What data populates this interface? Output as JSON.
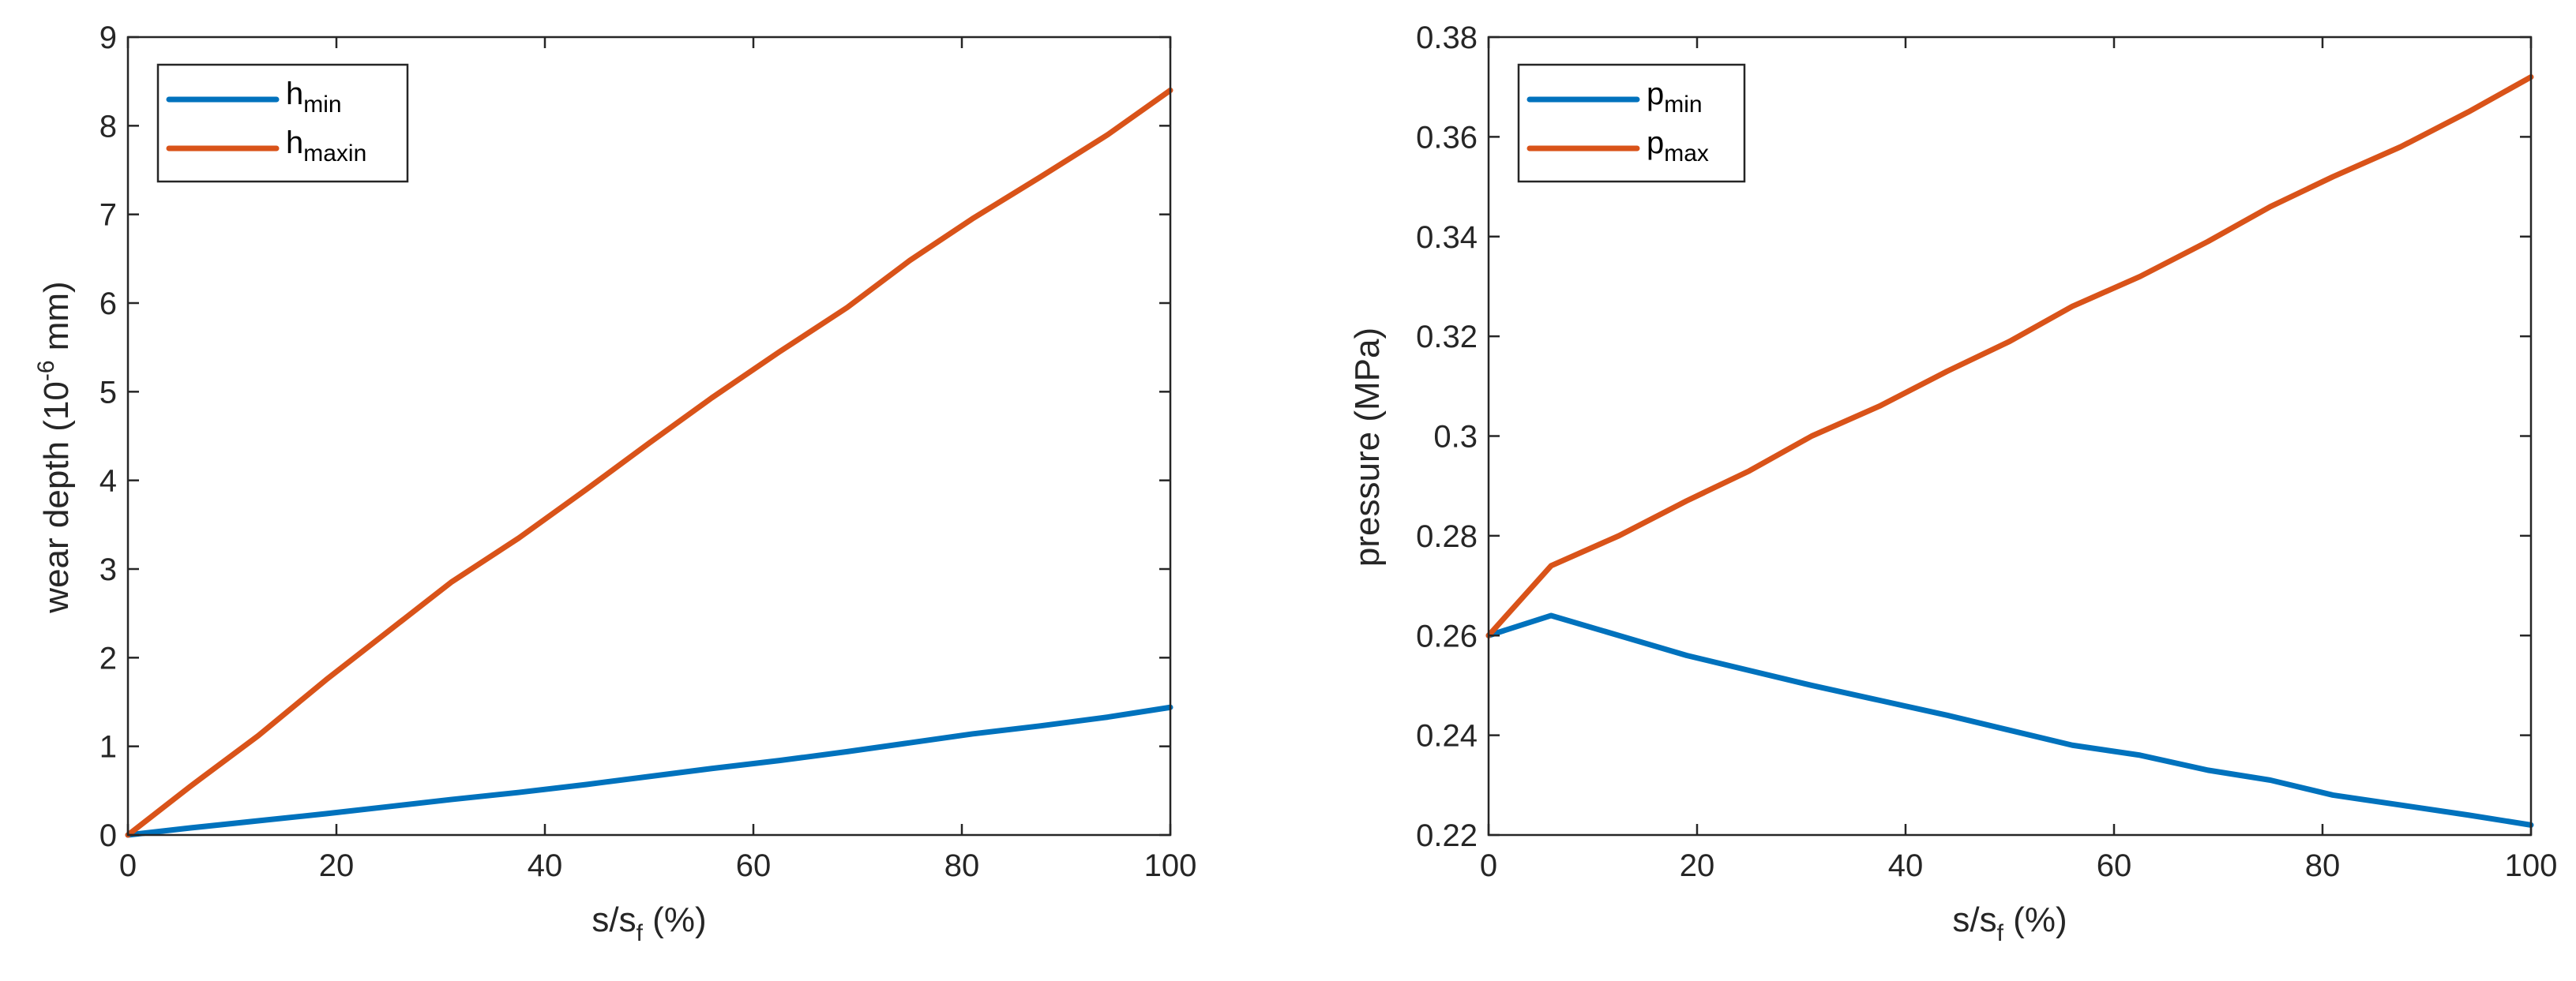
{
  "chart_data": [
    {
      "type": "line",
      "xlabel": {
        "base": "s/s",
        "sub": "f",
        "suffix": " (%)"
      },
      "ylabel": {
        "prefix": "wear depth (10",
        "sup": "-6",
        "suffix": " mm)"
      },
      "xlim": [
        0,
        100
      ],
      "ylim": [
        0,
        9
      ],
      "xticks": [
        0,
        20,
        40,
        60,
        80,
        100
      ],
      "yticks": [
        0,
        1,
        2,
        3,
        4,
        5,
        6,
        7,
        8,
        9
      ],
      "xtick_labels": [
        "0",
        "20",
        "40",
        "60",
        "80",
        "100"
      ],
      "ytick_labels": [
        "0",
        "1",
        "2",
        "3",
        "4",
        "5",
        "6",
        "7",
        "8",
        "9"
      ],
      "legend_position": "top-left",
      "series": [
        {
          "name": "h_min",
          "label_base": "h",
          "label_sub": "min",
          "color": "#0072BD",
          "x": [
            0,
            6,
            12.5,
            19,
            25,
            31,
            37.5,
            44,
            50,
            56,
            62.5,
            69,
            75,
            81,
            87.5,
            94,
            100
          ],
          "y": [
            0,
            0.08,
            0.16,
            0.24,
            0.32,
            0.4,
            0.48,
            0.57,
            0.66,
            0.75,
            0.84,
            0.94,
            1.04,
            1.14,
            1.23,
            1.33,
            1.44
          ]
        },
        {
          "name": "h_maxin",
          "label_base": "h",
          "label_sub": "maxin",
          "color": "#D95319",
          "x": [
            0,
            6,
            12.5,
            19,
            25,
            31,
            37.5,
            44,
            50,
            56,
            62.5,
            69,
            75,
            81,
            87.5,
            94,
            100
          ],
          "y": [
            0,
            0.55,
            1.12,
            1.75,
            2.3,
            2.85,
            3.35,
            3.9,
            4.42,
            4.93,
            5.45,
            5.95,
            6.48,
            6.95,
            7.42,
            7.9,
            8.4
          ]
        }
      ]
    },
    {
      "type": "line",
      "xlabel": {
        "base": "s/s",
        "sub": "f",
        "suffix": " (%)"
      },
      "ylabel": {
        "prefix": "pressure (MPa)",
        "sup": "",
        "suffix": ""
      },
      "xlim": [
        0,
        100
      ],
      "ylim": [
        0.22,
        0.38
      ],
      "xticks": [
        0,
        20,
        40,
        60,
        80,
        100
      ],
      "yticks": [
        0.22,
        0.24,
        0.26,
        0.28,
        0.3,
        0.32,
        0.34,
        0.36,
        0.38
      ],
      "xtick_labels": [
        "0",
        "20",
        "40",
        "60",
        "80",
        "100"
      ],
      "ytick_labels": [
        "0.22",
        "0.24",
        "0.26",
        "0.28",
        "0.3",
        "0.32",
        "0.34",
        "0.36",
        "0.38"
      ],
      "legend_position": "top-left",
      "series": [
        {
          "name": "p_min",
          "label_base": "p",
          "label_sub": "min",
          "color": "#0072BD",
          "x": [
            0,
            6,
            12.5,
            19,
            25,
            31,
            37.5,
            44,
            50,
            56,
            62.5,
            69,
            75,
            81,
            87.5,
            94,
            100
          ],
          "y": [
            0.26,
            0.264,
            0.26,
            0.256,
            0.253,
            0.25,
            0.247,
            0.244,
            0.241,
            0.238,
            0.236,
            0.233,
            0.231,
            0.228,
            0.226,
            0.224,
            0.222
          ]
        },
        {
          "name": "p_max",
          "label_base": "p",
          "label_sub": "max",
          "color": "#D95319",
          "x": [
            0,
            6,
            12.5,
            19,
            25,
            31,
            37.5,
            44,
            50,
            56,
            62.5,
            69,
            75,
            81,
            87.5,
            94,
            100
          ],
          "y": [
            0.26,
            0.274,
            0.28,
            0.287,
            0.293,
            0.3,
            0.306,
            0.313,
            0.319,
            0.326,
            0.332,
            0.339,
            0.346,
            0.352,
            0.358,
            0.365,
            0.372
          ]
        }
      ]
    }
  ]
}
